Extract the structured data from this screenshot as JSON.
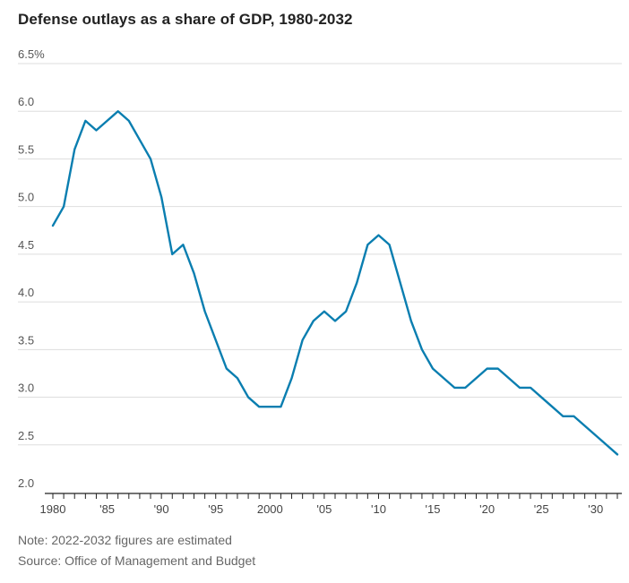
{
  "title": "Defense outlays as a share of GDP, 1980-2032",
  "chart_data": {
    "type": "line",
    "title": "Defense outlays as a share of GDP, 1980-2032",
    "xlabel": "",
    "ylabel": "",
    "ylim": [
      2.0,
      6.5
    ],
    "xlim": [
      1980,
      2032
    ],
    "grid": true,
    "y_ticks": [
      2.0,
      2.5,
      3.0,
      3.5,
      4.0,
      4.5,
      5.0,
      5.5,
      6.0,
      6.5
    ],
    "y_tick_labels": [
      "2.0",
      "2.5",
      "3.0",
      "3.5",
      "4.0",
      "4.5",
      "5.0",
      "5.5",
      "6.0",
      "6.5%"
    ],
    "x_tick_labels": [
      "1980",
      "'85",
      "'90",
      "'95",
      "2000",
      "'05",
      "'10",
      "'15",
      "'20",
      "'25",
      "'30"
    ],
    "x_tick_years": [
      1980,
      1985,
      1990,
      1995,
      2000,
      2005,
      2010,
      2015,
      2020,
      2025,
      2030
    ],
    "line_color": "#0a7eb0",
    "series": [
      {
        "x": [
          1980,
          1981,
          1982,
          1983,
          1984,
          1985,
          1986,
          1987,
          1988,
          1989,
          1990,
          1991,
          1992,
          1993,
          1994,
          1995,
          1996,
          1997,
          1998,
          1999,
          2000,
          2001,
          2002,
          2003,
          2004,
          2005,
          2006,
          2007,
          2008,
          2009,
          2010,
          2011,
          2012,
          2013,
          2014,
          2015,
          2016,
          2017,
          2018,
          2019,
          2020,
          2021,
          2022,
          2023,
          2024,
          2025,
          2026,
          2027,
          2028,
          2029,
          2030,
          2031,
          2032
        ],
        "values": [
          4.8,
          5.0,
          5.6,
          5.9,
          5.8,
          5.9,
          6.0,
          5.9,
          5.7,
          5.5,
          5.1,
          4.5,
          4.6,
          4.3,
          3.9,
          3.6,
          3.3,
          3.2,
          3.0,
          2.9,
          2.9,
          2.9,
          3.2,
          3.6,
          3.8,
          3.9,
          3.8,
          3.9,
          4.2,
          4.6,
          4.7,
          4.6,
          4.2,
          3.8,
          3.5,
          3.3,
          3.2,
          3.1,
          3.1,
          3.2,
          3.3,
          3.3,
          3.2,
          3.1,
          3.1,
          3.0,
          2.9,
          2.8,
          2.8,
          2.7,
          2.6,
          2.5,
          2.4
        ]
      }
    ]
  },
  "footer": {
    "note": "Note: 2022-2032 figures are estimated",
    "source": "Source: Office of Management and Budget"
  }
}
